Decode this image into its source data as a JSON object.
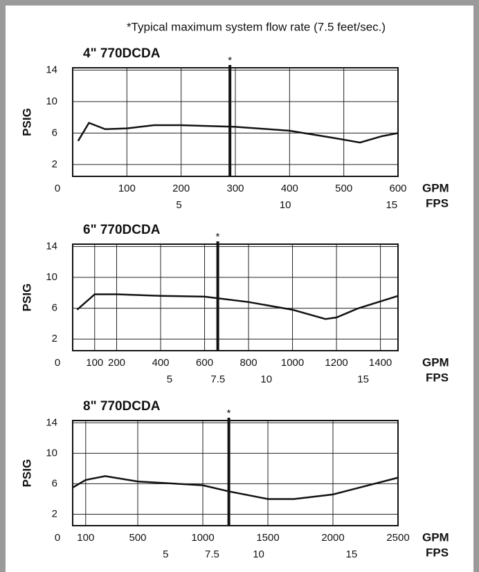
{
  "note": "*Typical maximum system flow rate (7.5 feet/sec.)",
  "chart_data": [
    {
      "type": "line",
      "title": "4\" 770DCDA",
      "ylabel": "PSIG",
      "xlabel": "GPM",
      "x2label": "FPS",
      "grid": true,
      "x": [
        10,
        30,
        60,
        100,
        150,
        200,
        300,
        400,
        480,
        530,
        570,
        600
      ],
      "series": [
        {
          "color": "#111111",
          "values": [
            5,
            7.3,
            6.5,
            6.6,
            7,
            7,
            6.8,
            6.3,
            5.4,
            4.8,
            5.6,
            6
          ]
        }
      ],
      "xlim": [
        0,
        600
      ],
      "xticks": [
        0,
        100,
        200,
        300,
        400,
        500,
        600
      ],
      "ylim": [
        0.5,
        14.3
      ],
      "yticks": [
        2,
        6,
        10,
        14
      ],
      "x2lim": [
        0,
        15.3
      ],
      "x2ticks": [
        5,
        10,
        15
      ],
      "marker": {
        "x": 290,
        "label": "*"
      }
    },
    {
      "type": "line",
      "title": "6\" 770DCDA",
      "ylabel": "PSIG",
      "xlabel": "GPM",
      "x2label": "FPS",
      "grid": true,
      "x": [
        20,
        100,
        200,
        400,
        600,
        800,
        1000,
        1150,
        1200,
        1300,
        1480
      ],
      "series": [
        {
          "color": "#111111",
          "values": [
            5.8,
            7.8,
            7.8,
            7.6,
            7.5,
            6.8,
            5.8,
            4.6,
            4.8,
            6,
            7.6
          ]
        }
      ],
      "xlim": [
        0,
        1480
      ],
      "xticks": [
        0,
        100,
        200,
        400,
        600,
        800,
        1000,
        1200,
        1400
      ],
      "ylim": [
        0.5,
        14.3
      ],
      "yticks": [
        2,
        6,
        10,
        14
      ],
      "x2lim": [
        0,
        16.8
      ],
      "x2ticks": [
        5,
        7.5,
        10,
        15
      ],
      "marker": {
        "x": 660,
        "label": "*"
      }
    },
    {
      "type": "line",
      "title": "8\" 770DCDA",
      "ylabel": "PSIG",
      "xlabel": "GPM",
      "x2label": "FPS",
      "grid": true,
      "x": [
        0,
        100,
        250,
        500,
        1000,
        1200,
        1500,
        1700,
        2000,
        2500
      ],
      "series": [
        {
          "color": "#111111",
          "values": [
            5.5,
            6.5,
            7,
            6.3,
            5.8,
            5,
            4,
            4,
            4.6,
            6.8
          ]
        }
      ],
      "xlim": [
        0,
        2500
      ],
      "xticks": [
        0,
        100,
        500,
        1000,
        1500,
        2000,
        2500
      ],
      "ylim": [
        0.5,
        14.3
      ],
      "yticks": [
        2,
        6,
        10,
        14
      ],
      "x2lim": [
        0,
        17.5
      ],
      "x2ticks": [
        5,
        7.5,
        10,
        15
      ],
      "marker": {
        "x": 1200,
        "label": "*"
      }
    }
  ]
}
